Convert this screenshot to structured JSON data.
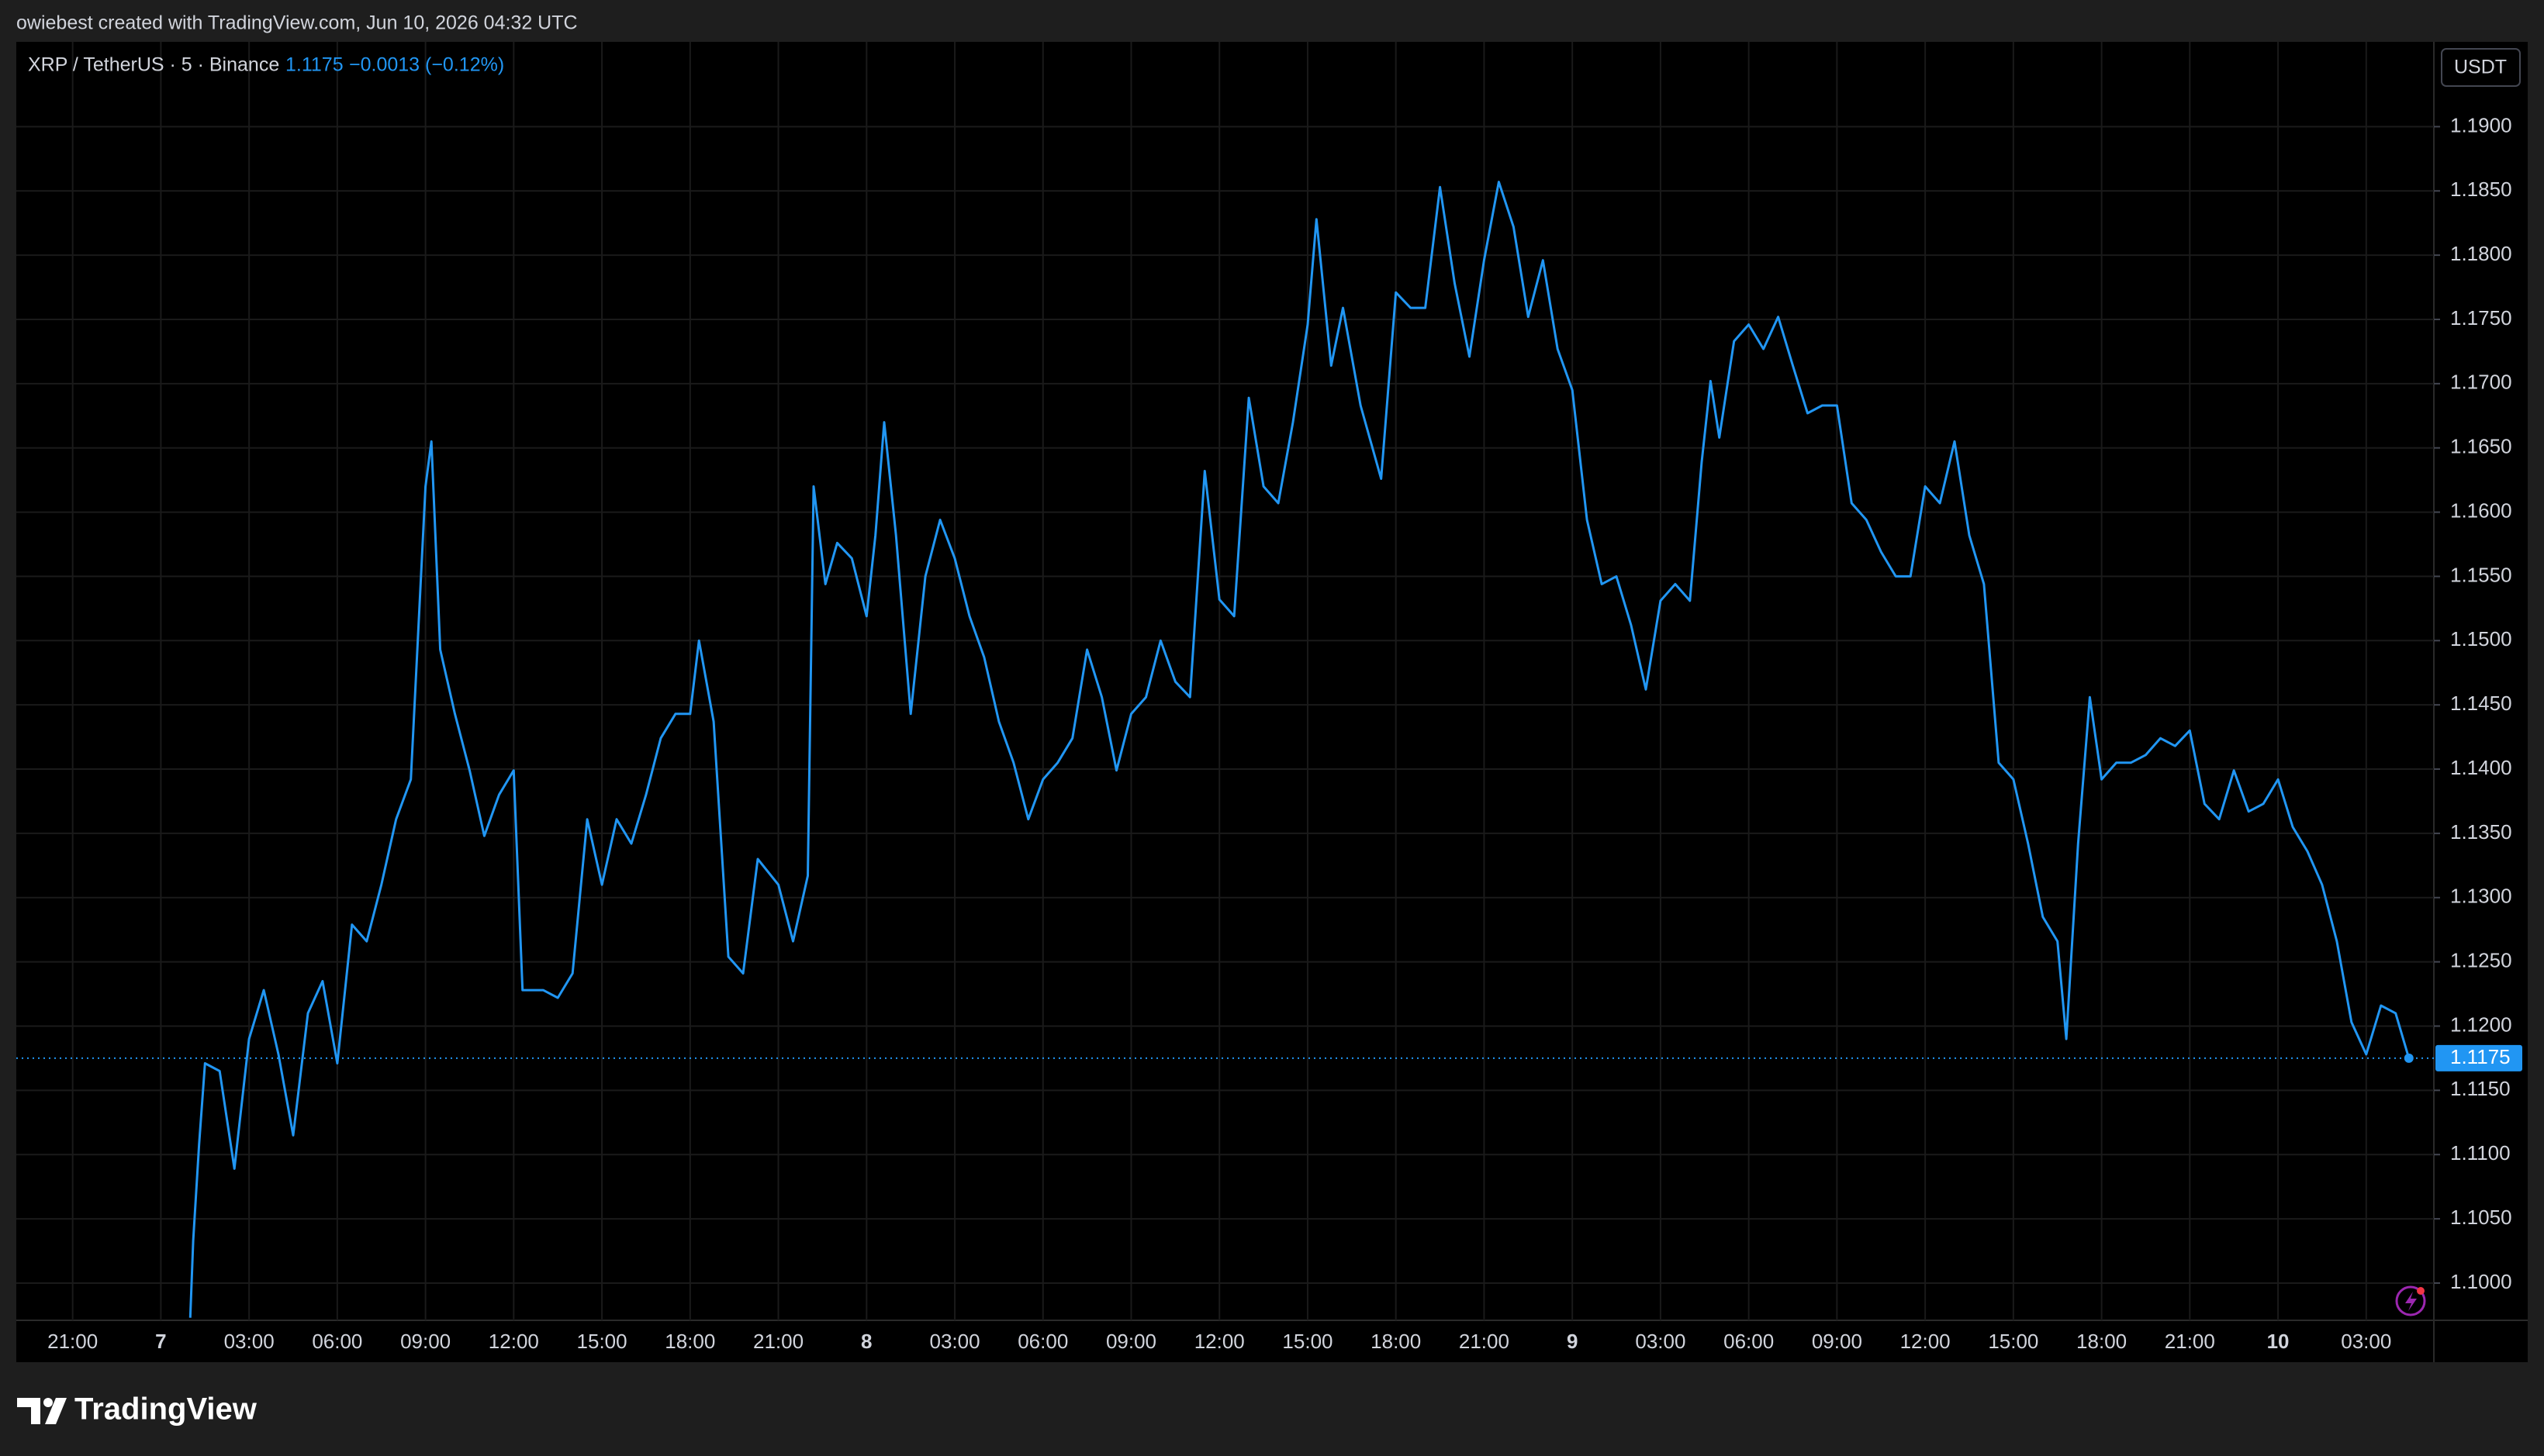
{
  "chart_data": {
    "type": "line",
    "header": "owiebest created with TradingView.com, Jun 10, 2026 04:32 UTC",
    "symbol": "XRP / TetherUS · 5 · Binance",
    "price": 1.1175,
    "change": "−0.0013 (−0.12%)",
    "currency": "USDT",
    "brand": "TradingView",
    "color": "#2196f3",
    "grid": true,
    "x": [
      "2026-06-07T01:00",
      "2026-06-07T01:06",
      "2026-06-07T01:18",
      "2026-06-07T01:30",
      "2026-06-07T02:00",
      "2026-06-07T02:30",
      "2026-06-07T03:00",
      "2026-06-07T03:30",
      "2026-06-07T04:00",
      "2026-06-07T04:30",
      "2026-06-07T05:00",
      "2026-06-07T05:30",
      "2026-06-07T06:00",
      "2026-06-07T06:30",
      "2026-06-07T07:00",
      "2026-06-07T07:30",
      "2026-06-07T08:00",
      "2026-06-07T08:30",
      "2026-06-07T09:00",
      "2026-06-07T09:12",
      "2026-06-07T09:30",
      "2026-06-07T10:00",
      "2026-06-07T10:30",
      "2026-06-07T11:00",
      "2026-06-07T11:30",
      "2026-06-07T12:00",
      "2026-06-07T12:18",
      "2026-06-07T13:00",
      "2026-06-07T13:30",
      "2026-06-07T14:00",
      "2026-06-07T14:30",
      "2026-06-07T15:00",
      "2026-06-07T15:30",
      "2026-06-07T16:00",
      "2026-06-07T16:30",
      "2026-06-07T17:00",
      "2026-06-07T17:30",
      "2026-06-07T18:00",
      "2026-06-07T18:18",
      "2026-06-07T18:48",
      "2026-06-07T19:18",
      "2026-06-07T19:48",
      "2026-06-07T20:18",
      "2026-06-07T21:00",
      "2026-06-07T21:30",
      "2026-06-07T22:00",
      "2026-06-07T22:12",
      "2026-06-07T22:36",
      "2026-06-07T23:00",
      "2026-06-07T23:30",
      "2026-06-08T00:00",
      "2026-06-08T00:18",
      "2026-06-08T00:36",
      "2026-06-08T01:00",
      "2026-06-08T01:30",
      "2026-06-08T02:00",
      "2026-06-08T02:30",
      "2026-06-08T03:00",
      "2026-06-08T03:30",
      "2026-06-08T04:00",
      "2026-06-08T04:30",
      "2026-06-08T05:00",
      "2026-06-08T05:30",
      "2026-06-08T06:00",
      "2026-06-08T06:30",
      "2026-06-08T07:00",
      "2026-06-08T07:30",
      "2026-06-08T08:00",
      "2026-06-08T08:30",
      "2026-06-08T09:00",
      "2026-06-08T09:30",
      "2026-06-08T10:00",
      "2026-06-08T10:30",
      "2026-06-08T11:00",
      "2026-06-08T11:30",
      "2026-06-08T12:00",
      "2026-06-08T12:30",
      "2026-06-08T13:00",
      "2026-06-08T13:30",
      "2026-06-08T14:00",
      "2026-06-08T14:30",
      "2026-06-08T15:00",
      "2026-06-08T15:18",
      "2026-06-08T15:48",
      "2026-06-08T16:12",
      "2026-06-08T16:48",
      "2026-06-08T17:30",
      "2026-06-08T18:00",
      "2026-06-08T18:30",
      "2026-06-08T19:00",
      "2026-06-08T19:30",
      "2026-06-08T20:00",
      "2026-06-08T20:30",
      "2026-06-08T21:00",
      "2026-06-08T21:30",
      "2026-06-08T22:00",
      "2026-06-08T22:30",
      "2026-06-08T23:00",
      "2026-06-08T23:30",
      "2026-06-09T00:00",
      "2026-06-09T00:30",
      "2026-06-09T01:00",
      "2026-06-09T01:30",
      "2026-06-09T02:00",
      "2026-06-09T02:30",
      "2026-06-09T03:00",
      "2026-06-09T03:30",
      "2026-06-09T04:00",
      "2026-06-09T04:24",
      "2026-06-09T04:42",
      "2026-06-09T05:00",
      "2026-06-09T05:30",
      "2026-06-09T06:00",
      "2026-06-09T06:30",
      "2026-06-09T07:00",
      "2026-06-09T07:30",
      "2026-06-09T08:00",
      "2026-06-09T08:30",
      "2026-06-09T09:00",
      "2026-06-09T09:30",
      "2026-06-09T10:00",
      "2026-06-09T10:30",
      "2026-06-09T11:00",
      "2026-06-09T11:30",
      "2026-06-09T12:00",
      "2026-06-09T12:30",
      "2026-06-09T13:00",
      "2026-06-09T13:30",
      "2026-06-09T14:00",
      "2026-06-09T14:30",
      "2026-06-09T15:00",
      "2026-06-09T15:30",
      "2026-06-09T16:00",
      "2026-06-09T16:30",
      "2026-06-09T16:48",
      "2026-06-09T17:12",
      "2026-06-09T17:36",
      "2026-06-09T18:00",
      "2026-06-09T18:30",
      "2026-06-09T19:00",
      "2026-06-09T19:30",
      "2026-06-09T20:00",
      "2026-06-09T20:30",
      "2026-06-09T21:00",
      "2026-06-09T21:30",
      "2026-06-09T22:00",
      "2026-06-09T22:30",
      "2026-06-09T23:00",
      "2026-06-09T23:30",
      "2026-06-10T00:00",
      "2026-06-10T00:30",
      "2026-06-10T01:00",
      "2026-06-10T01:30",
      "2026-06-10T02:00",
      "2026-06-10T02:30",
      "2026-06-10T03:00",
      "2026-06-10T03:30",
      "2026-06-10T04:00",
      "2026-06-10T04:27"
    ],
    "values": [
      1.0973,
      1.1033,
      1.1108,
      1.1171,
      1.1165,
      1.1089,
      1.119,
      1.1228,
      1.1178,
      1.1115,
      1.121,
      1.1235,
      1.1171,
      1.1279,
      1.1266,
      1.131,
      1.1361,
      1.1392,
      1.162,
      1.1655,
      1.1493,
      1.1443,
      1.1399,
      1.1348,
      1.138,
      1.1399,
      1.1228,
      1.1228,
      1.1222,
      1.1241,
      1.1361,
      1.131,
      1.1361,
      1.1342,
      1.138,
      1.1424,
      1.1443,
      1.1443,
      1.15,
      1.1437,
      1.1254,
      1.1241,
      1.133,
      1.131,
      1.1266,
      1.1317,
      1.162,
      1.1544,
      1.1576,
      1.1564,
      1.1519,
      1.1582,
      1.167,
      1.1582,
      1.1443,
      1.155,
      1.1594,
      1.1564,
      1.1519,
      1.1487,
      1.1437,
      1.1405,
      1.1361,
      1.1392,
      1.1405,
      1.1424,
      1.1493,
      1.1456,
      1.1399,
      1.1443,
      1.1456,
      1.15,
      1.1468,
      1.1456,
      1.1632,
      1.1532,
      1.1519,
      1.1689,
      1.162,
      1.1607,
      1.167,
      1.1746,
      1.1828,
      1.1714,
      1.1759,
      1.1683,
      1.1626,
      1.1771,
      1.1759,
      1.1759,
      1.1853,
      1.1778,
      1.1721,
      1.1796,
      1.1857,
      1.1822,
      1.1752,
      1.1796,
      1.1727,
      1.1695,
      1.1594,
      1.1544,
      1.155,
      1.1512,
      1.1462,
      1.1531,
      1.1544,
      1.1531,
      1.1639,
      1.1702,
      1.1658,
      1.1733,
      1.1746,
      1.1727,
      1.1752,
      1.1714,
      1.1677,
      1.1683,
      1.1683,
      1.1607,
      1.1594,
      1.1569,
      1.155,
      1.155,
      1.162,
      1.1607,
      1.1655,
      1.1582,
      1.1544,
      1.1405,
      1.1392,
      1.1342,
      1.1285,
      1.1266,
      1.119,
      1.1342,
      1.1456,
      1.1392,
      1.1405,
      1.1405,
      1.1411,
      1.1424,
      1.1418,
      1.143,
      1.1373,
      1.1361,
      1.1399,
      1.1367,
      1.1373,
      1.1392,
      1.1355,
      1.1336,
      1.131,
      1.1266,
      1.1203,
      1.1178,
      1.1216,
      1.121,
      1.1175
    ],
    "xlim": [
      "2026-06-06T19:05",
      "2026-06-10T05:18"
    ],
    "xticks": [
      {
        "value": "2026-06-06T21:00",
        "label": "21:00"
      },
      {
        "value": "2026-06-07T00:00",
        "label": "7"
      },
      {
        "value": "2026-06-07T03:00",
        "label": "03:00"
      },
      {
        "value": "2026-06-07T06:00",
        "label": "06:00"
      },
      {
        "value": "2026-06-07T09:00",
        "label": "09:00"
      },
      {
        "value": "2026-06-07T12:00",
        "label": "12:00"
      },
      {
        "value": "2026-06-07T15:00",
        "label": "15:00"
      },
      {
        "value": "2026-06-07T18:00",
        "label": "18:00"
      },
      {
        "value": "2026-06-07T21:00",
        "label": "21:00"
      },
      {
        "value": "2026-06-08T00:00",
        "label": "8"
      },
      {
        "value": "2026-06-08T03:00",
        "label": "03:00"
      },
      {
        "value": "2026-06-08T06:00",
        "label": "06:00"
      },
      {
        "value": "2026-06-08T09:00",
        "label": "09:00"
      },
      {
        "value": "2026-06-08T12:00",
        "label": "12:00"
      },
      {
        "value": "2026-06-08T15:00",
        "label": "15:00"
      },
      {
        "value": "2026-06-08T18:00",
        "label": "18:00"
      },
      {
        "value": "2026-06-08T21:00",
        "label": "21:00"
      },
      {
        "value": "2026-06-09T00:00",
        "label": "9"
      },
      {
        "value": "2026-06-09T03:00",
        "label": "03:00"
      },
      {
        "value": "2026-06-09T06:00",
        "label": "06:00"
      },
      {
        "value": "2026-06-09T09:00",
        "label": "09:00"
      },
      {
        "value": "2026-06-09T12:00",
        "label": "12:00"
      },
      {
        "value": "2026-06-09T15:00",
        "label": "15:00"
      },
      {
        "value": "2026-06-09T18:00",
        "label": "18:00"
      },
      {
        "value": "2026-06-09T21:00",
        "label": "21:00"
      },
      {
        "value": "2026-06-10T00:00",
        "label": "10"
      },
      {
        "value": "2026-06-10T03:00",
        "label": "03:00"
      }
    ],
    "ylim": [
      1.0971,
      1.1966
    ],
    "yticks": [
      {
        "value": 1.1,
        "label": "1.1000"
      },
      {
        "value": 1.105,
        "label": "1.1050"
      },
      {
        "value": 1.11,
        "label": "1.1100"
      },
      {
        "value": 1.115,
        "label": "1.1150"
      },
      {
        "value": 1.12,
        "label": "1.1200"
      },
      {
        "value": 1.125,
        "label": "1.1250"
      },
      {
        "value": 1.13,
        "label": "1.1300"
      },
      {
        "value": 1.135,
        "label": "1.1350"
      },
      {
        "value": 1.14,
        "label": "1.1400"
      },
      {
        "value": 1.145,
        "label": "1.1450"
      },
      {
        "value": 1.15,
        "label": "1.1500"
      },
      {
        "value": 1.155,
        "label": "1.1550"
      },
      {
        "value": 1.16,
        "label": "1.1600"
      },
      {
        "value": 1.165,
        "label": "1.1650"
      },
      {
        "value": 1.17,
        "label": "1.1700"
      },
      {
        "value": 1.175,
        "label": "1.1750"
      },
      {
        "value": 1.18,
        "label": "1.1800"
      },
      {
        "value": 1.185,
        "label": "1.1850"
      },
      {
        "value": 1.19,
        "label": "1.1900"
      }
    ]
  }
}
